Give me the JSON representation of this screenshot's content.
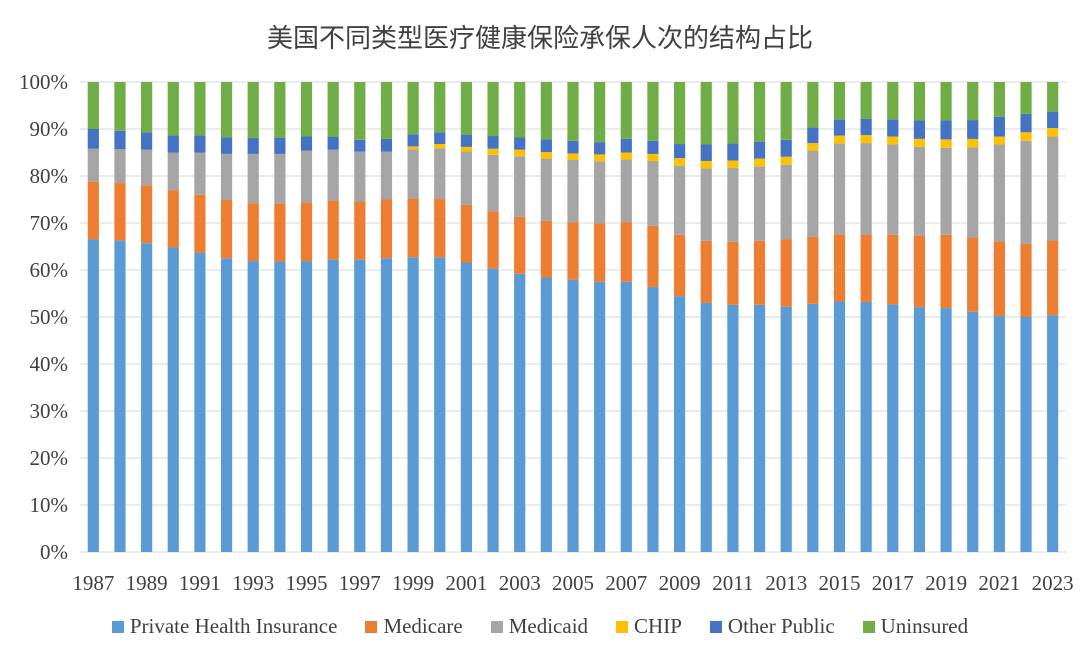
{
  "chart_data": {
    "type": "bar",
    "stacked": true,
    "title": "美国不同类型医疗健康保险承保人次的结构占比",
    "xlabel": "",
    "ylabel": "",
    "ylim": [
      0,
      100
    ],
    "y_tick_labels": [
      "0%",
      "10%",
      "20%",
      "30%",
      "40%",
      "50%",
      "60%",
      "70%",
      "80%",
      "90%",
      "100%"
    ],
    "grid": true,
    "legend_position": "bottom",
    "categories": [
      "1987",
      "1988",
      "1989",
      "1990",
      "1991",
      "1992",
      "1993",
      "1994",
      "1995",
      "1996",
      "1997",
      "1998",
      "1999",
      "2000",
      "2001",
      "2002",
      "2003",
      "2004",
      "2005",
      "2006",
      "2007",
      "2008",
      "2009",
      "2010",
      "2011",
      "2012",
      "2013",
      "2014",
      "2015",
      "2016",
      "2017",
      "2018",
      "2019",
      "2020",
      "2021",
      "2022",
      "2023"
    ],
    "x_tick_labels": [
      "1987",
      "",
      "1989",
      "",
      "1991",
      "",
      "1993",
      "",
      "1995",
      "",
      "1997",
      "",
      "1999",
      "",
      "2001",
      "",
      "2003",
      "",
      "2005",
      "",
      "2007",
      "",
      "2009",
      "",
      "2011",
      "",
      "2013",
      "",
      "2015",
      "",
      "2017",
      "",
      "2019",
      "",
      "2021",
      "",
      "2023"
    ],
    "series": [
      {
        "name": "Private Health Insurance",
        "color": "#5b9bd5",
        "values": [
          66.5,
          66.3,
          65.7,
          64.8,
          63.7,
          62.5,
          61.9,
          61.8,
          61.9,
          62.2,
          62.2,
          62.5,
          62.7,
          62.7,
          61.6,
          60.3,
          59.2,
          58.4,
          57.9,
          57.5,
          57.5,
          56.4,
          54.4,
          53.0,
          52.6,
          52.6,
          52.2,
          52.8,
          53.3,
          53.2,
          52.7,
          52.1,
          51.9,
          51.1,
          50.2,
          50.0,
          50.4
        ]
      },
      {
        "name": "Medicare",
        "color": "#ed7d31",
        "values": [
          12.3,
          12.2,
          12.3,
          12.2,
          12.3,
          12.4,
          12.3,
          12.4,
          12.5,
          12.6,
          12.4,
          12.5,
          12.5,
          12.4,
          12.3,
          12.2,
          12.1,
          12.1,
          12.2,
          12.4,
          12.7,
          13.0,
          13.1,
          13.2,
          13.4,
          13.6,
          14.3,
          14.3,
          14.3,
          14.4,
          14.8,
          15.3,
          15.6,
          15.8,
          15.9,
          15.6,
          15.9
        ]
      },
      {
        "name": "Medicaid",
        "color": "#a5a5a5",
        "values": [
          7.0,
          7.2,
          7.6,
          8.0,
          9.0,
          9.8,
          10.5,
          10.5,
          11.0,
          10.8,
          10.6,
          10.2,
          10.5,
          10.8,
          11.3,
          12.0,
          12.9,
          13.2,
          13.3,
          13.2,
          13.3,
          13.8,
          14.7,
          15.4,
          15.7,
          15.8,
          15.9,
          18.3,
          19.3,
          19.4,
          19.2,
          18.8,
          18.5,
          19.2,
          20.6,
          21.9,
          22.1
        ]
      },
      {
        "name": "CHIP",
        "color": "#ffc000",
        "values": [
          0.0,
          0.0,
          0.0,
          0.0,
          0.0,
          0.0,
          0.0,
          0.0,
          0.0,
          0.0,
          0.0,
          0.0,
          0.6,
          0.9,
          1.0,
          1.3,
          1.4,
          1.4,
          1.4,
          1.5,
          1.5,
          1.5,
          1.6,
          1.6,
          1.6,
          1.7,
          1.7,
          1.6,
          1.7,
          1.7,
          1.7,
          1.7,
          1.8,
          1.8,
          1.7,
          1.8,
          1.8
        ]
      },
      {
        "name": "Other Public",
        "color": "#4472c4",
        "values": [
          4.2,
          3.9,
          3.7,
          3.6,
          3.6,
          3.5,
          3.4,
          3.4,
          3.0,
          2.7,
          2.5,
          2.7,
          2.6,
          2.5,
          2.6,
          2.7,
          2.6,
          2.7,
          2.7,
          2.6,
          2.9,
          2.8,
          3.0,
          3.5,
          3.6,
          3.6,
          3.6,
          3.3,
          3.4,
          3.5,
          3.6,
          3.9,
          4.0,
          4.0,
          4.2,
          3.9,
          3.5
        ]
      },
      {
        "name": "Uninsured",
        "color": "#70ad47",
        "values": [
          10.0,
          10.4,
          10.7,
          11.4,
          11.4,
          11.8,
          11.9,
          11.9,
          11.6,
          11.7,
          12.3,
          12.1,
          11.1,
          10.7,
          11.2,
          11.5,
          11.8,
          12.2,
          12.5,
          12.8,
          12.1,
          12.5,
          13.2,
          13.3,
          13.1,
          12.7,
          12.3,
          9.7,
          8.0,
          7.8,
          8.0,
          8.2,
          8.2,
          8.1,
          7.4,
          6.8,
          6.3
        ]
      }
    ]
  }
}
